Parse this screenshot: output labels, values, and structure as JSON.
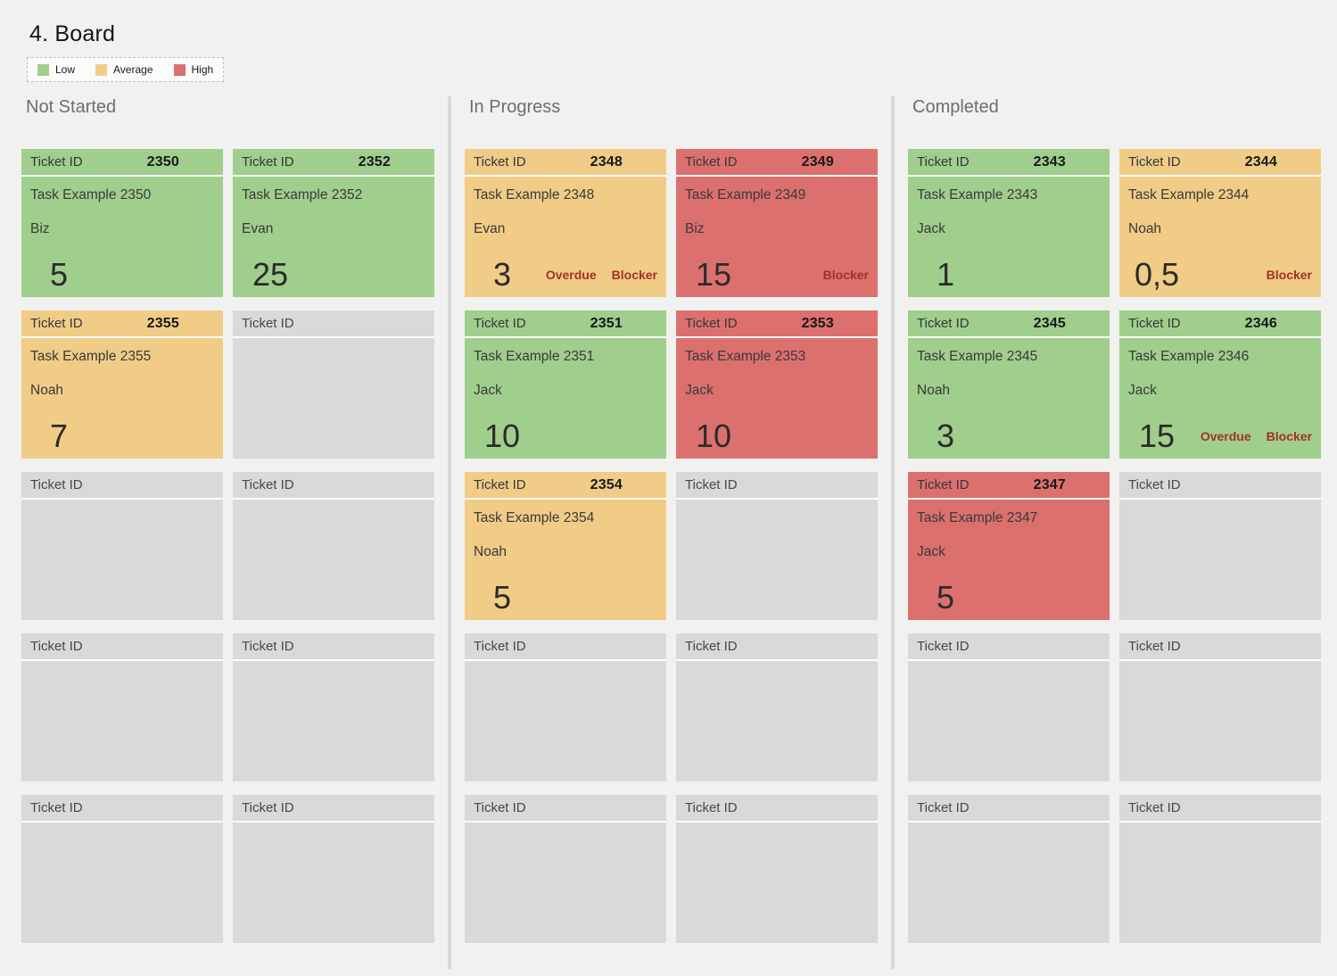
{
  "page": {
    "title": "4. Board"
  },
  "legend": {
    "items": [
      {
        "label": "Low",
        "color": "#A0CE8D"
      },
      {
        "label": "Average",
        "color": "#F0CC87"
      },
      {
        "label": "High",
        "color": "#DC706E"
      }
    ]
  },
  "card_header_label": "Ticket ID",
  "colors": {
    "low": "#A0CE8D",
    "average": "#F0CC87",
    "high": "#DC706E",
    "empty_card": "#D9D9D9",
    "badge_text": "#A33028",
    "divider": "#D9D9D9",
    "background": "#F1F1F0"
  },
  "columns": [
    {
      "title": "Not Started",
      "cards": [
        {
          "id": "2350",
          "task": "Task Example 2350",
          "assignee": "Biz",
          "estimate": "5",
          "priority": "low",
          "badges": []
        },
        {
          "id": "2352",
          "task": "Task Example 2352",
          "assignee": "Evan",
          "estimate": "25",
          "priority": "low",
          "badges": []
        },
        {
          "id": "2355",
          "task": "Task Example 2355",
          "assignee": "Noah",
          "estimate": "7",
          "priority": "average",
          "badges": []
        },
        {
          "empty": true
        },
        {
          "empty": true
        },
        {
          "empty": true
        },
        {
          "empty": true
        },
        {
          "empty": true
        },
        {
          "empty": true
        },
        {
          "empty": true
        }
      ]
    },
    {
      "title": "In Progress",
      "cards": [
        {
          "id": "2348",
          "task": "Task Example 2348",
          "assignee": "Evan",
          "estimate": "3",
          "priority": "average",
          "badges": [
            "Overdue",
            "Blocker"
          ]
        },
        {
          "id": "2349",
          "task": "Task Example 2349",
          "assignee": "Biz",
          "estimate": "15",
          "priority": "high",
          "badges": [
            "Blocker"
          ]
        },
        {
          "id": "2351",
          "task": "Task Example 2351",
          "assignee": "Jack",
          "estimate": "10",
          "priority": "low",
          "badges": []
        },
        {
          "id": "2353",
          "task": "Task Example 2353",
          "assignee": "Jack",
          "estimate": "10",
          "priority": "high",
          "badges": []
        },
        {
          "id": "2354",
          "task": "Task Example 2354",
          "assignee": "Noah",
          "estimate": "5",
          "priority": "average",
          "badges": []
        },
        {
          "empty": true
        },
        {
          "empty": true
        },
        {
          "empty": true
        },
        {
          "empty": true
        },
        {
          "empty": true
        }
      ]
    },
    {
      "title": "Completed",
      "cards": [
        {
          "id": "2343",
          "task": "Task Example 2343",
          "assignee": "Jack",
          "estimate": "1",
          "priority": "low",
          "badges": []
        },
        {
          "id": "2344",
          "task": "Task Example 2344",
          "assignee": "Noah",
          "estimate": "0,5",
          "priority": "average",
          "badges": [
            "Blocker"
          ]
        },
        {
          "id": "2345",
          "task": "Task Example 2345",
          "assignee": "Noah",
          "estimate": "3",
          "priority": "low",
          "badges": []
        },
        {
          "id": "2346",
          "task": "Task Example 2346",
          "assignee": "Jack",
          "estimate": "15",
          "priority": "low",
          "badges": [
            "Overdue",
            "Blocker"
          ]
        },
        {
          "id": "2347",
          "task": "Task Example 2347",
          "assignee": "Jack",
          "estimate": "5",
          "priority": "high",
          "badges": []
        },
        {
          "empty": true
        },
        {
          "empty": true
        },
        {
          "empty": true
        },
        {
          "empty": true
        },
        {
          "empty": true
        }
      ]
    }
  ]
}
